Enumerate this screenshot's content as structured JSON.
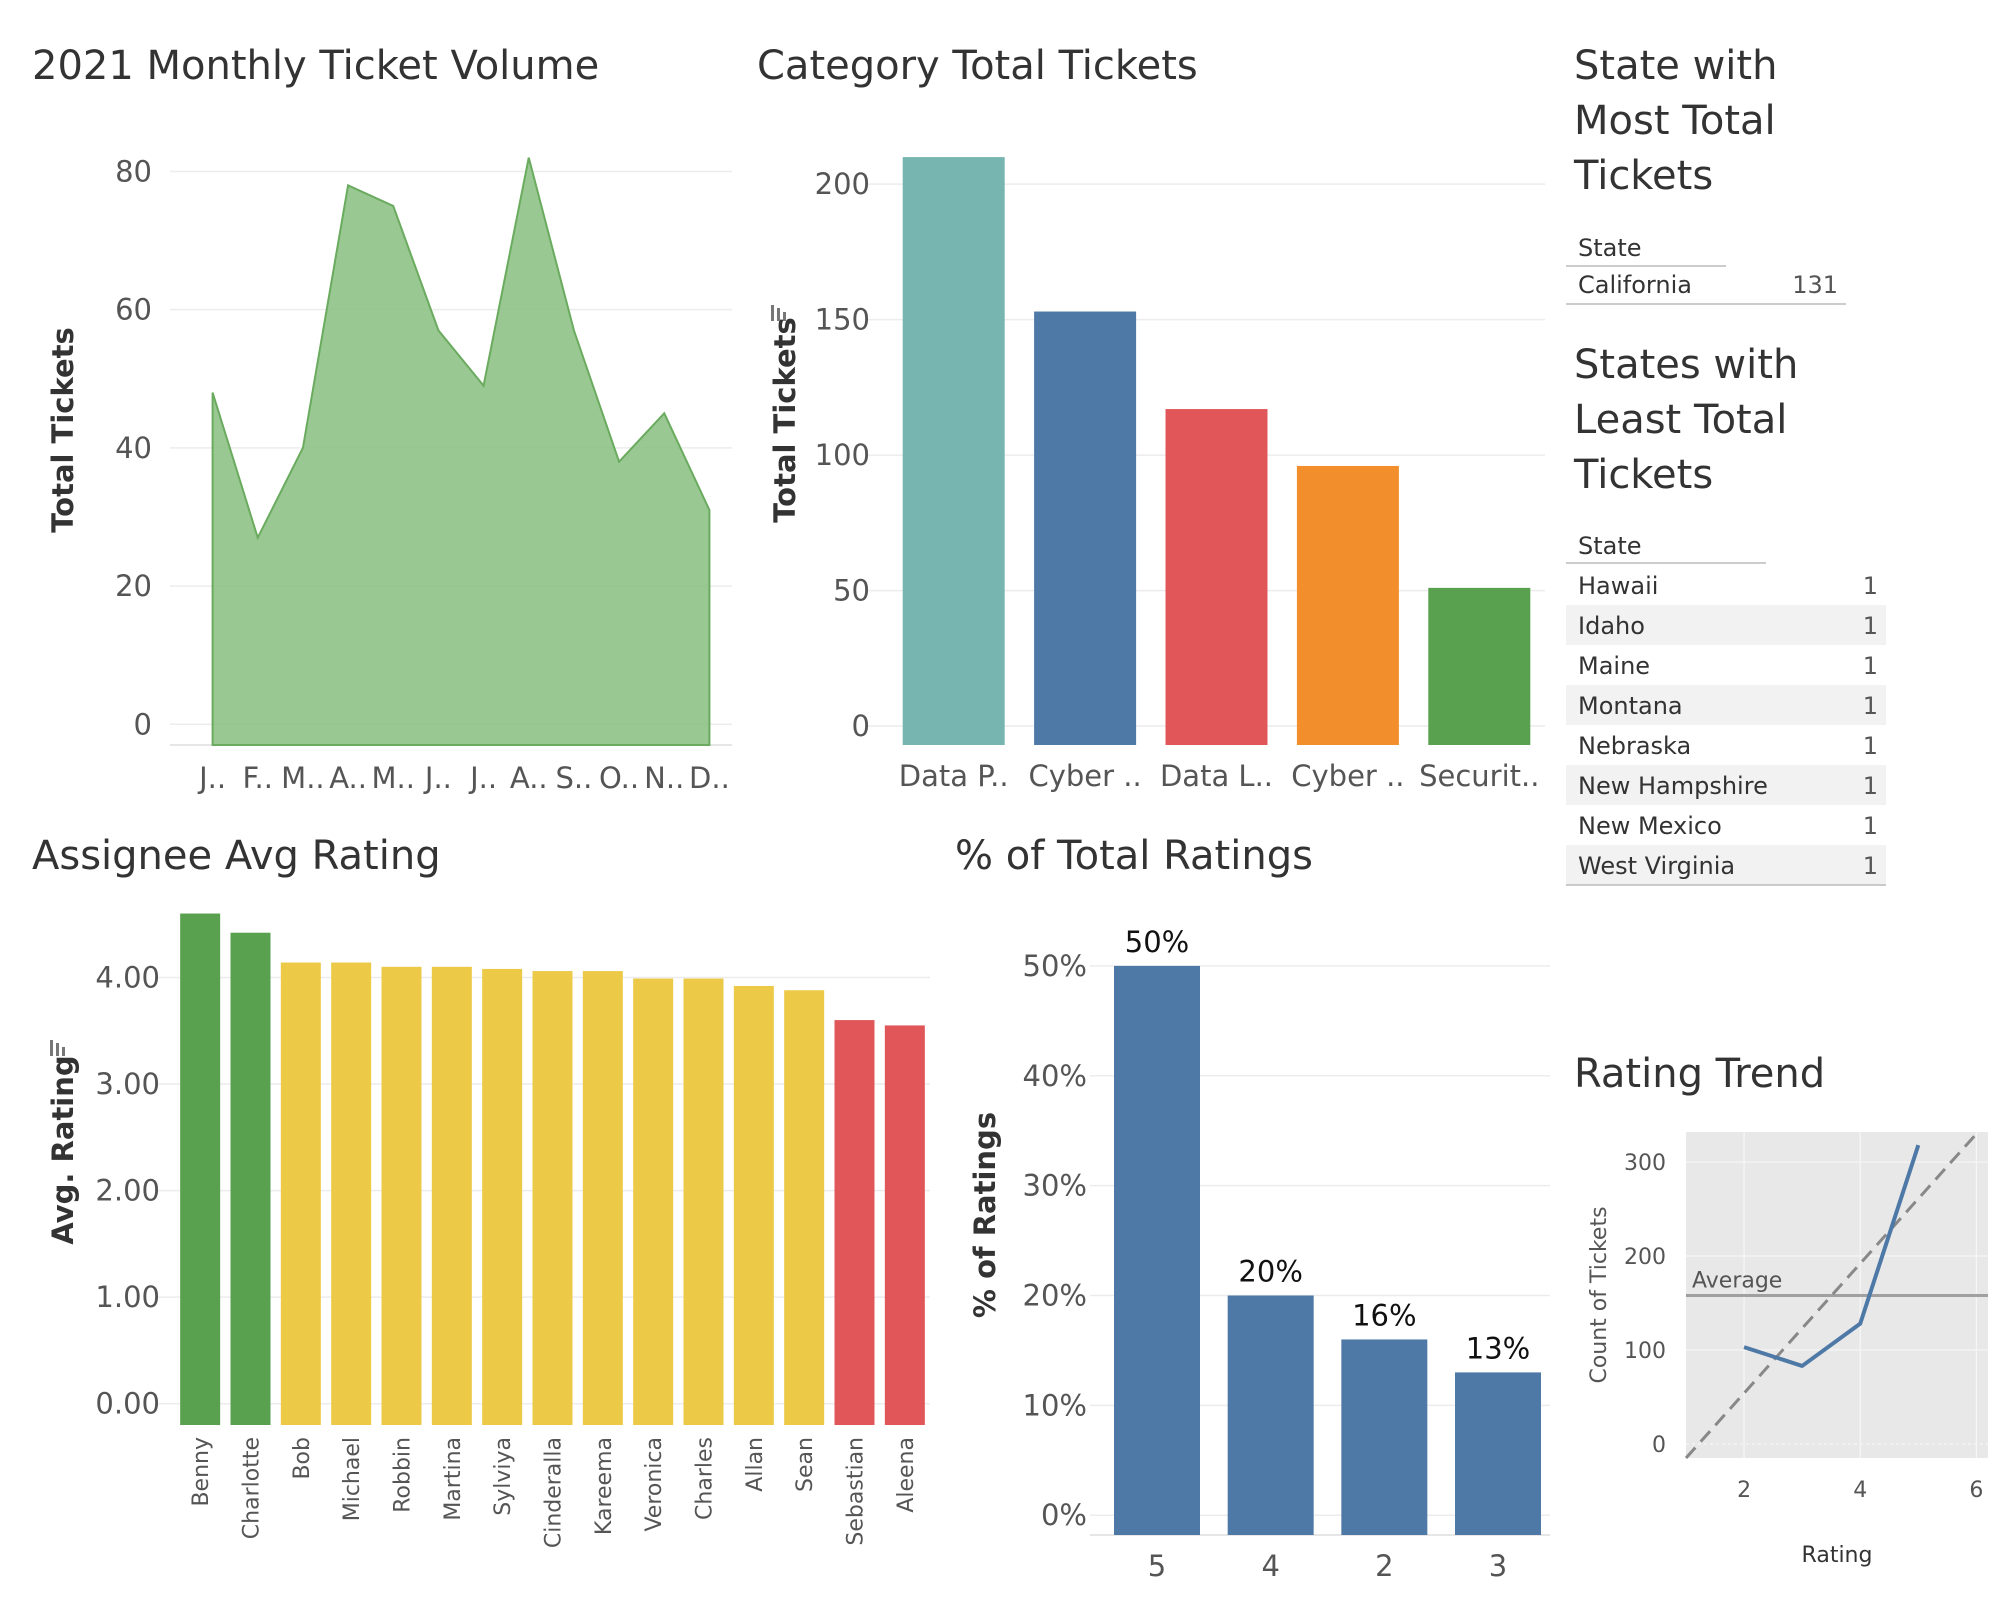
{
  "colors": {
    "green_area": "#8cc084",
    "teal": "#76b5b0",
    "blue": "#4e79a7",
    "red": "#e15759",
    "orange": "#f28e2b",
    "green": "#59a14f",
    "yellow": "#edc948",
    "grid": "#ececec",
    "trend_bg": "#e8e8e8",
    "gray_line": "#a0a0a0"
  },
  "panels": {
    "monthly": {
      "chart_data": {
        "type": "area",
        "title": "2021 Monthly Ticket Volume",
        "ylabel": "Total Tickets",
        "categories": [
          "J..",
          "F..",
          "M..",
          "A..",
          "M..",
          "J..",
          "J..",
          "A..",
          "S..",
          "O..",
          "N..",
          "D.."
        ],
        "values": [
          48,
          27,
          40,
          78,
          75,
          57,
          49,
          82,
          57,
          38,
          45,
          31
        ],
        "ylim": [
          -3,
          86
        ],
        "yticks": [
          0,
          20,
          40,
          60,
          80
        ],
        "grid": true
      }
    },
    "category": {
      "chart_data": {
        "type": "bar",
        "title": "Category Total Tickets",
        "ylabel": "Total Tickets",
        "categories": [
          "Data P..",
          "Cyber ..",
          "Data L..",
          "Cyber ..",
          "Securit.."
        ],
        "values": [
          210,
          153,
          117,
          96,
          51
        ],
        "colors": [
          "#76b5b0",
          "#4e79a7",
          "#e15759",
          "#f28e2b",
          "#59a14f"
        ],
        "ylim": [
          -7,
          220
        ],
        "yticks": [
          0,
          50,
          100,
          150,
          200
        ],
        "grid": true
      }
    },
    "most_state": {
      "title_lines": [
        "State with",
        "Most Total",
        "Tickets"
      ],
      "header": "State",
      "rows": [
        {
          "state": "California",
          "value": "131"
        }
      ]
    },
    "least_states": {
      "title_lines": [
        "States with",
        "Least Total",
        "Tickets"
      ],
      "header": "State",
      "rows": [
        {
          "state": "Hawaii",
          "value": "1"
        },
        {
          "state": "Idaho",
          "value": "1"
        },
        {
          "state": "Maine",
          "value": "1"
        },
        {
          "state": "Montana",
          "value": "1"
        },
        {
          "state": "Nebraska",
          "value": "1"
        },
        {
          "state": "New Hampshire",
          "value": "1"
        },
        {
          "state": "New Mexico",
          "value": "1"
        },
        {
          "state": "West Virginia",
          "value": "1"
        }
      ]
    },
    "assignee": {
      "chart_data": {
        "type": "bar",
        "title": "Assignee Avg Rating",
        "ylabel": "Avg. Rating",
        "categories": [
          "Benny",
          "Charlotte",
          "Bob",
          "Michael",
          "Robbin",
          "Martina",
          "Sylviya",
          "Cinderalla",
          "Kareema",
          "Veronica",
          "Charles",
          "Allan",
          "Sean",
          "Sebastian",
          "Aleena"
        ],
        "values": [
          4.6,
          4.42,
          4.14,
          4.14,
          4.1,
          4.1,
          4.08,
          4.06,
          4.06,
          3.99,
          3.99,
          3.92,
          3.88,
          3.6,
          3.55
        ],
        "colors": [
          "#59a14f",
          "#59a14f",
          "#edc948",
          "#edc948",
          "#edc948",
          "#edc948",
          "#edc948",
          "#edc948",
          "#edc948",
          "#edc948",
          "#edc948",
          "#edc948",
          "#edc948",
          "#e15759",
          "#e15759"
        ],
        "ylim": [
          -0.2,
          4.68
        ],
        "yticks": [
          "0.00",
          "1.00",
          "2.00",
          "3.00",
          "4.00"
        ],
        "grid": true
      }
    },
    "pct": {
      "chart_data": {
        "type": "bar",
        "title": "% of Total Ratings",
        "ylabel": "% of Ratings",
        "categories": [
          "5",
          "4",
          "2",
          "3"
        ],
        "values": [
          50,
          20,
          16,
          13
        ],
        "data_labels": [
          "50%",
          "20%",
          "16%",
          "13%"
        ],
        "ylim": [
          -1.8,
          56
        ],
        "yticks": [
          "0%",
          "10%",
          "20%",
          "30%",
          "40%",
          "50%"
        ],
        "grid": true
      }
    },
    "trend": {
      "chart_data": {
        "type": "line",
        "title": "Rating Trend",
        "xlabel": "Rating",
        "ylabel": "Count of Tickets",
        "series": [
          {
            "x": [
              2,
              3,
              4,
              5
            ],
            "y": [
              103,
              83,
              128,
              318
            ]
          }
        ],
        "average": {
          "label": "Average",
          "value": 158
        },
        "trend_line": {
          "from": [
            1,
            -15
          ],
          "to": [
            6,
            330
          ]
        },
        "xlim": [
          1,
          6.2
        ],
        "ylim": [
          -15,
          332
        ],
        "xticks": [
          "2",
          "4",
          "6"
        ],
        "yticks": [
          "0",
          "100",
          "200",
          "300"
        ],
        "grid": true
      }
    }
  }
}
